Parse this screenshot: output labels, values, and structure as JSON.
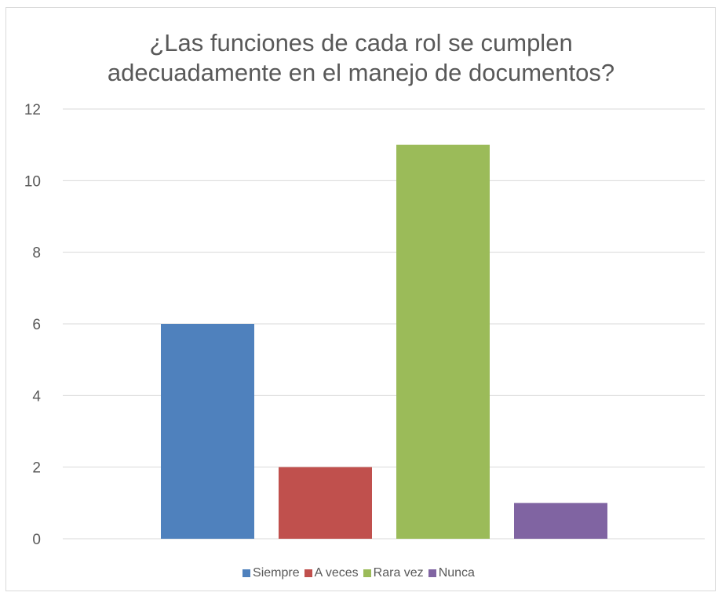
{
  "chart_data": {
    "type": "bar",
    "title_lines": [
      "¿Las funciones de cada rol se cumplen",
      "adecuadamente en el manejo de documentos?"
    ],
    "categories": [
      "Siempre",
      "A veces",
      "Rara vez",
      "Nunca"
    ],
    "values": [
      6,
      2,
      11,
      1
    ],
    "colors": [
      "#4f81bd",
      "#c0504d",
      "#9bbb59",
      "#8064a2"
    ],
    "ylim": [
      0,
      12
    ],
    "yticks": [
      "0",
      "2",
      "4",
      "6",
      "8",
      "10",
      "12"
    ],
    "grid": true,
    "legend_position": "bottom",
    "gridline_color": "#d9d9d9"
  }
}
